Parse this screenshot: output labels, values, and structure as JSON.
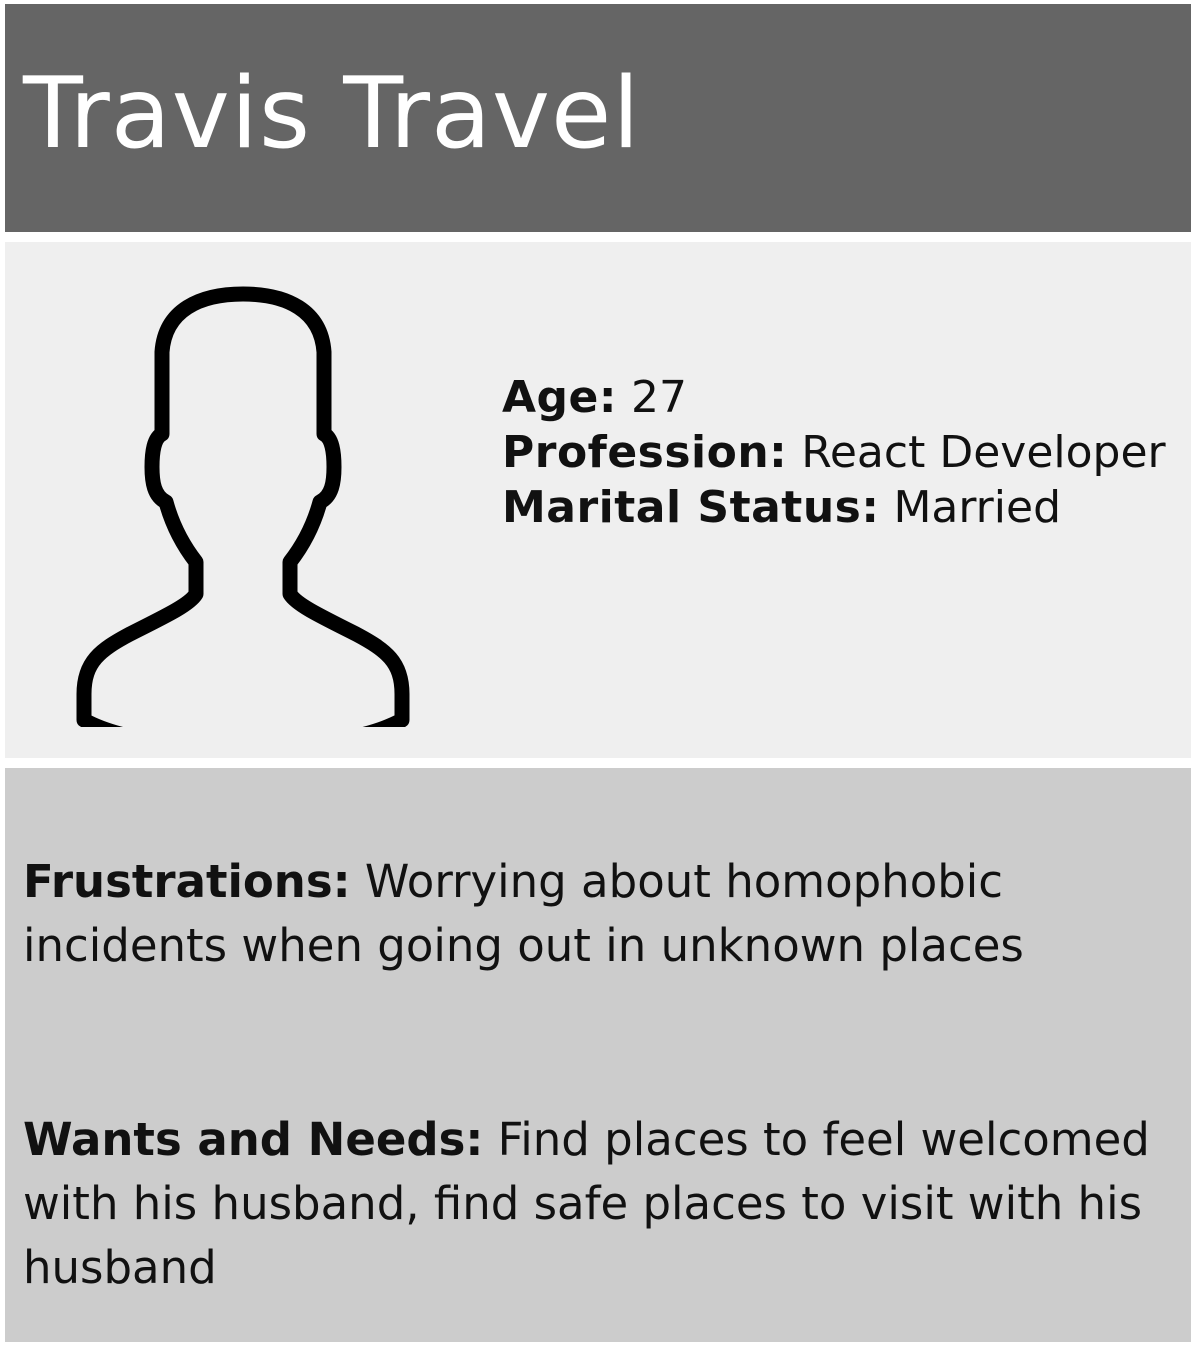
{
  "header": {
    "title": "Travis Travel"
  },
  "profile": {
    "avatar_icon": "person-silhouette-icon",
    "facts": [
      {
        "label": "Age:",
        "value": " 27"
      },
      {
        "label": "Profession:",
        "value": " React Developer"
      },
      {
        "label": "Marital Status:",
        "value": " Married"
      }
    ]
  },
  "details": {
    "frustrations": {
      "label": "Frustrations:",
      "text": " Worrying about homophobic incidents when going out in unknown places"
    },
    "wants_and_needs": {
      "label": "Wants and Needs:",
      "text": " Find places to feel welcomed with his husband, find safe places to visit with his husband"
    }
  },
  "colors": {
    "header_background": "#656565",
    "profile_background": "#efefef",
    "details_background": "#cccccc",
    "title_text": "#ffffff",
    "body_text": "#111111"
  }
}
